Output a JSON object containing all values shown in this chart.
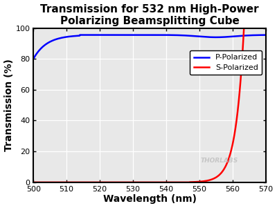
{
  "title": "Transmission for 532 nm High-Power\nPolarizing Beamsplitting Cube",
  "xlabel": "Wavelength (nm)",
  "ylabel": "Transmission (%)",
  "xlim": [
    500,
    570
  ],
  "ylim": [
    0,
    100
  ],
  "xticks": [
    500,
    510,
    520,
    530,
    540,
    550,
    560,
    570
  ],
  "yticks": [
    0,
    20,
    40,
    60,
    80,
    100
  ],
  "p_color": "#0000FF",
  "s_color": "#FF0000",
  "p_label": "P-Polarized",
  "s_label": "S-Polarized",
  "bg_color": "#e8e8e8",
  "watermark": "THORLABS",
  "watermark_color": "#c0c0c0",
  "title_fontsize": 11,
  "axis_label_fontsize": 10,
  "tick_fontsize": 8,
  "legend_fontsize": 8
}
